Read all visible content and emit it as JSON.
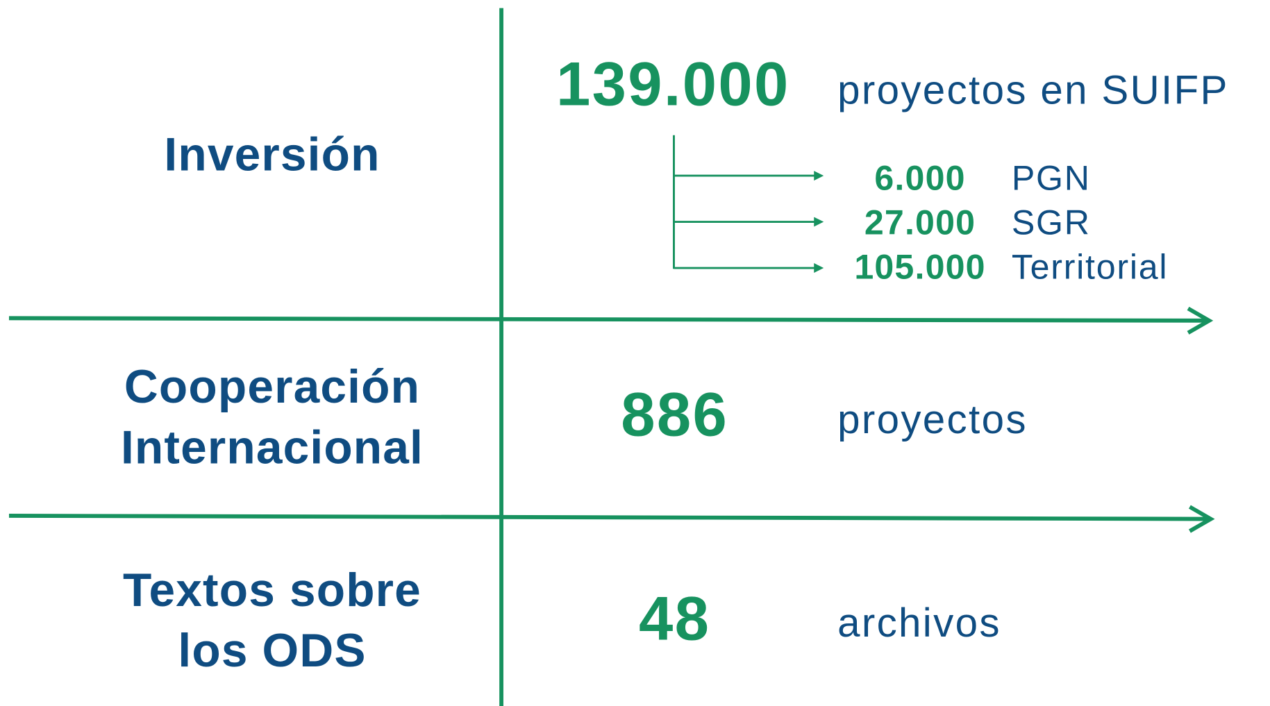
{
  "rows": [
    {
      "label": [
        "Inversión"
      ],
      "number": "139.000",
      "unit": "proyectos en SUIFP",
      "breakdown": [
        {
          "number": "6.000",
          "label": "PGN"
        },
        {
          "number": "27.000",
          "label": "SGR"
        },
        {
          "number": "105.000",
          "label": "Territorial"
        }
      ]
    },
    {
      "label": [
        "Cooperación",
        "Internacional"
      ],
      "number": "886",
      "unit": "proyectos"
    },
    {
      "label": [
        "Textos sobre",
        "los ODS"
      ],
      "number": "48",
      "unit": "archivos"
    }
  ]
}
